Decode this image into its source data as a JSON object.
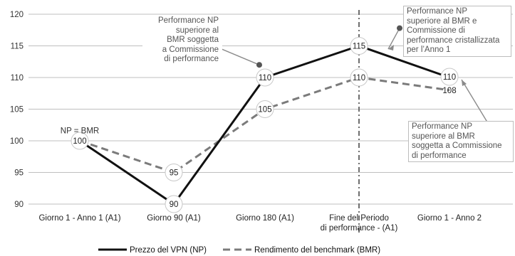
{
  "chart_data": {
    "type": "line",
    "categories": [
      [
        "Giorno 1 - Anno 1 (A1)"
      ],
      [
        "Giorno 90 (A1)"
      ],
      [
        "Giorno 180 (A1)"
      ],
      [
        "Fine del Periodo",
        "di performance - (A1)"
      ],
      [
        "Giorno 1 - Anno 2"
      ]
    ],
    "ylim": [
      90,
      120
    ],
    "yticks": [
      90,
      95,
      100,
      105,
      110,
      115,
      120
    ],
    "grid": true,
    "series": [
      {
        "name": "Prezzo del VPN (NP)",
        "values": [
          100,
          90,
          110,
          115,
          110
        ],
        "color": "#111111",
        "style": "solid"
      },
      {
        "name": "Rendimento del benchmark (BMR)",
        "values": [
          100,
          95,
          105,
          110,
          108
        ],
        "color": "#7b7b7b",
        "style": "dashed"
      }
    ],
    "point_labels": [
      {
        "series": 0,
        "index": 0,
        "text": "100"
      },
      {
        "series": 0,
        "index": 1,
        "text": "90"
      },
      {
        "series": 0,
        "index": 2,
        "text": "110"
      },
      {
        "series": 0,
        "index": 3,
        "text": "115"
      },
      {
        "series": 0,
        "index": 4,
        "text": "110"
      },
      {
        "series": 1,
        "index": 1,
        "text": "95"
      },
      {
        "series": 1,
        "index": 2,
        "text": "105"
      },
      {
        "series": 1,
        "index": 3,
        "text": "110"
      },
      {
        "series": 1,
        "index": 4,
        "text": "108"
      }
    ],
    "vertical_marker_index": 3,
    "legend_position": "bottom",
    "annotations": [
      {
        "text": "NP = BMR",
        "x_index": 0,
        "y": 101.2
      },
      {
        "lines": [
          "Performance NP",
          "superiore al",
          "BMR soggetta",
          "a Commissione",
          "di performance"
        ],
        "pointer_x_index": 2,
        "pointer_y": 112
      },
      {
        "lines": [
          "Performance NP",
          "superiore al BMR e",
          "Commissione di",
          "performance cristallizzata",
          "per l’Anno 1"
        ],
        "pointer_x_index": 3,
        "pointer_y": 117.8
      },
      {
        "lines": [
          "Performance NP",
          "superiore al BMR",
          "soggetta a Commissione",
          "di performance"
        ],
        "pointer_x_index": 4,
        "pointer_y": 109
      }
    ]
  }
}
